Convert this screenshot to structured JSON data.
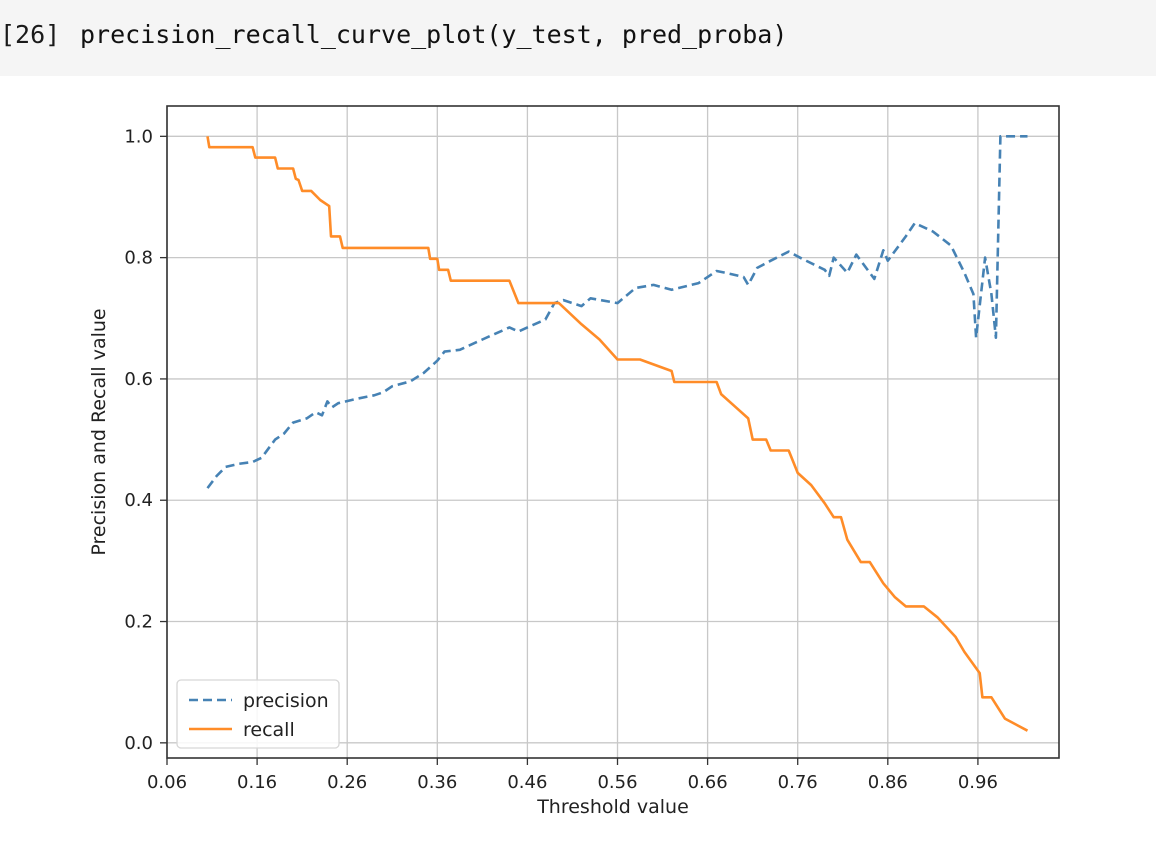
{
  "cell": {
    "prompt": "[26]",
    "code": "precision_recall_curve_plot(y_test, pred_proba)"
  },
  "chart_data": {
    "type": "line",
    "xlabel": "Threshold value",
    "ylabel": "Precision and Recall value",
    "xlim": [
      0.06,
      1.05
    ],
    "ylim": [
      -0.025,
      1.05
    ],
    "xticks": [
      0.06,
      0.16,
      0.26,
      0.36,
      0.46,
      0.56,
      0.66,
      0.76,
      0.86,
      0.96
    ],
    "xtick_labels": [
      "0.06",
      "0.16",
      "0.26",
      "0.36",
      "0.46",
      "0.56",
      "0.66",
      "0.76",
      "0.86",
      "0.96"
    ],
    "yticks": [
      0.0,
      0.2,
      0.4,
      0.6,
      0.8,
      1.0
    ],
    "ytick_labels": [
      "0.0",
      "0.2",
      "0.4",
      "0.6",
      "0.8",
      "1.0"
    ],
    "grid": true,
    "legend_position": "lower-left",
    "series": [
      {
        "name": "precision",
        "color": "#4682b4",
        "style": "dashed",
        "points": [
          [
            0.105,
            0.42
          ],
          [
            0.115,
            0.44
          ],
          [
            0.125,
            0.455
          ],
          [
            0.14,
            0.46
          ],
          [
            0.155,
            0.463
          ],
          [
            0.165,
            0.47
          ],
          [
            0.18,
            0.5
          ],
          [
            0.19,
            0.51
          ],
          [
            0.2,
            0.528
          ],
          [
            0.215,
            0.535
          ],
          [
            0.225,
            0.545
          ],
          [
            0.232,
            0.54
          ],
          [
            0.238,
            0.563
          ],
          [
            0.243,
            0.553
          ],
          [
            0.25,
            0.56
          ],
          [
            0.27,
            0.567
          ],
          [
            0.29,
            0.573
          ],
          [
            0.3,
            0.578
          ],
          [
            0.31,
            0.588
          ],
          [
            0.33,
            0.596
          ],
          [
            0.345,
            0.61
          ],
          [
            0.36,
            0.63
          ],
          [
            0.368,
            0.645
          ],
          [
            0.385,
            0.648
          ],
          [
            0.41,
            0.665
          ],
          [
            0.44,
            0.685
          ],
          [
            0.45,
            0.678
          ],
          [
            0.46,
            0.685
          ],
          [
            0.48,
            0.698
          ],
          [
            0.49,
            0.725
          ],
          [
            0.5,
            0.73
          ],
          [
            0.52,
            0.72
          ],
          [
            0.53,
            0.733
          ],
          [
            0.56,
            0.725
          ],
          [
            0.58,
            0.75
          ],
          [
            0.6,
            0.755
          ],
          [
            0.62,
            0.747
          ],
          [
            0.65,
            0.758
          ],
          [
            0.67,
            0.778
          ],
          [
            0.68,
            0.775
          ],
          [
            0.7,
            0.768
          ],
          [
            0.705,
            0.755
          ],
          [
            0.715,
            0.783
          ],
          [
            0.73,
            0.795
          ],
          [
            0.75,
            0.81
          ],
          [
            0.765,
            0.798
          ],
          [
            0.79,
            0.78
          ],
          [
            0.795,
            0.77
          ],
          [
            0.8,
            0.8
          ],
          [
            0.815,
            0.775
          ],
          [
            0.825,
            0.805
          ],
          [
            0.845,
            0.765
          ],
          [
            0.855,
            0.812
          ],
          [
            0.86,
            0.795
          ],
          [
            0.88,
            0.835
          ],
          [
            0.89,
            0.857
          ],
          [
            0.91,
            0.843
          ],
          [
            0.93,
            0.82
          ],
          [
            0.945,
            0.775
          ],
          [
            0.955,
            0.74
          ],
          [
            0.958,
            0.668
          ],
          [
            0.968,
            0.8
          ],
          [
            0.975,
            0.74
          ],
          [
            0.98,
            0.668
          ],
          [
            0.985,
            1.0
          ],
          [
            1.015,
            1.0
          ]
        ]
      },
      {
        "name": "recall",
        "color": "#ff8c28",
        "style": "solid",
        "points": [
          [
            0.105,
            1.0
          ],
          [
            0.107,
            0.982
          ],
          [
            0.155,
            0.982
          ],
          [
            0.158,
            0.965
          ],
          [
            0.18,
            0.965
          ],
          [
            0.183,
            0.947
          ],
          [
            0.2,
            0.947
          ],
          [
            0.203,
            0.93
          ],
          [
            0.206,
            0.928
          ],
          [
            0.21,
            0.91
          ],
          [
            0.22,
            0.91
          ],
          [
            0.23,
            0.895
          ],
          [
            0.24,
            0.885
          ],
          [
            0.242,
            0.835
          ],
          [
            0.252,
            0.835
          ],
          [
            0.255,
            0.816
          ],
          [
            0.35,
            0.816
          ],
          [
            0.352,
            0.798
          ],
          [
            0.36,
            0.798
          ],
          [
            0.362,
            0.78
          ],
          [
            0.372,
            0.78
          ],
          [
            0.375,
            0.762
          ],
          [
            0.44,
            0.762
          ],
          [
            0.45,
            0.725
          ],
          [
            0.495,
            0.725
          ],
          [
            0.52,
            0.69
          ],
          [
            0.54,
            0.665
          ],
          [
            0.56,
            0.632
          ],
          [
            0.585,
            0.632
          ],
          [
            0.62,
            0.613
          ],
          [
            0.623,
            0.595
          ],
          [
            0.67,
            0.595
          ],
          [
            0.675,
            0.575
          ],
          [
            0.69,
            0.555
          ],
          [
            0.705,
            0.535
          ],
          [
            0.71,
            0.5
          ],
          [
            0.725,
            0.5
          ],
          [
            0.73,
            0.482
          ],
          [
            0.75,
            0.482
          ],
          [
            0.76,
            0.445
          ],
          [
            0.775,
            0.425
          ],
          [
            0.79,
            0.395
          ],
          [
            0.8,
            0.372
          ],
          [
            0.808,
            0.372
          ],
          [
            0.815,
            0.335
          ],
          [
            0.83,
            0.298
          ],
          [
            0.84,
            0.298
          ],
          [
            0.855,
            0.263
          ],
          [
            0.868,
            0.24
          ],
          [
            0.88,
            0.225
          ],
          [
            0.9,
            0.225
          ],
          [
            0.915,
            0.207
          ],
          [
            0.935,
            0.175
          ],
          [
            0.945,
            0.15
          ],
          [
            0.962,
            0.115
          ],
          [
            0.965,
            0.075
          ],
          [
            0.975,
            0.075
          ],
          [
            0.99,
            0.04
          ],
          [
            1.015,
            0.02
          ]
        ]
      }
    ]
  }
}
